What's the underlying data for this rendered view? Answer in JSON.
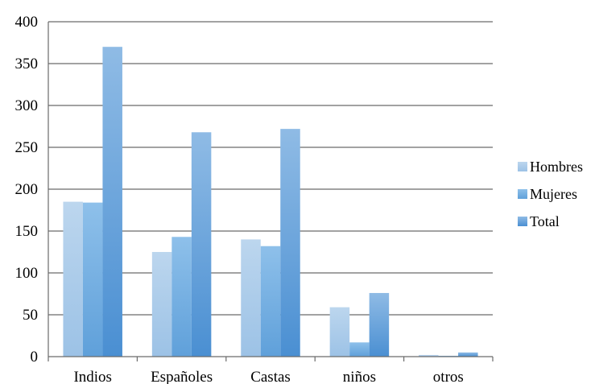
{
  "chart_data": {
    "type": "bar",
    "categories": [
      "Indios",
      "Españoles",
      "Castas",
      "niños",
      "otros"
    ],
    "series": [
      {
        "name": "Hombres",
        "values": [
          185,
          125,
          140,
          59,
          2
        ],
        "color": "#a9cbe9"
      },
      {
        "name": "Mujeres",
        "values": [
          184,
          143,
          132,
          17,
          1
        ],
        "color": "#7fb4e3"
      },
      {
        "name": "Total",
        "values": [
          370,
          268,
          272,
          76,
          5
        ],
        "color": "#6a9fd8"
      }
    ],
    "title": "",
    "xlabel": "",
    "ylabel": "",
    "ylim": [
      0,
      400
    ],
    "yticks": [
      0,
      50,
      100,
      150,
      200,
      250,
      300,
      350,
      400
    ],
    "grid": true,
    "legend": "right"
  }
}
